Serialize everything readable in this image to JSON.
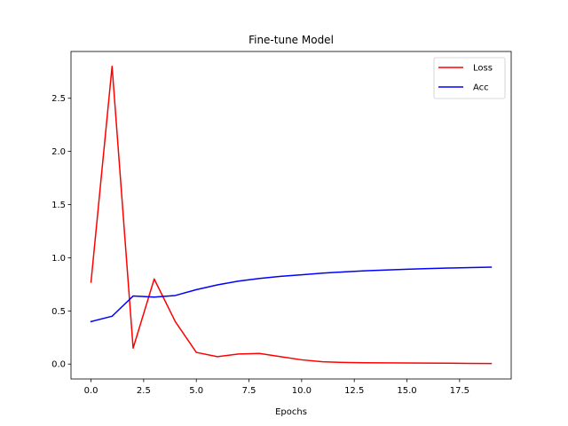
{
  "chart_data": {
    "type": "line",
    "title": "Fine-tune Model",
    "xlabel": "Epochs",
    "ylabel": "",
    "x": [
      0,
      1,
      2,
      3,
      4,
      5,
      6,
      7,
      8,
      9,
      10,
      11,
      12,
      13,
      14,
      15,
      16,
      17,
      18,
      19
    ],
    "series": [
      {
        "name": "Loss",
        "color": "#ff0000",
        "values": [
          0.77,
          2.8,
          0.15,
          0.8,
          0.4,
          0.11,
          0.07,
          0.095,
          0.1,
          0.07,
          0.04,
          0.022,
          0.015,
          0.012,
          0.011,
          0.01,
          0.009,
          0.008,
          0.006,
          0.005
        ]
      },
      {
        "name": "Acc",
        "color": "#0000ff",
        "values": [
          0.4,
          0.45,
          0.64,
          0.63,
          0.645,
          0.7,
          0.745,
          0.78,
          0.805,
          0.825,
          0.84,
          0.855,
          0.867,
          0.877,
          0.885,
          0.892,
          0.898,
          0.903,
          0.908,
          0.912
        ]
      }
    ],
    "xlim": [
      -0.95,
      19.95
    ],
    "ylim": [
      -0.14,
      2.94
    ],
    "xticks": [
      0.0,
      2.5,
      5.0,
      7.5,
      10.0,
      12.5,
      15.0,
      17.5
    ],
    "xtick_labels": [
      "0.0",
      "2.5",
      "5.0",
      "7.5",
      "10.0",
      "12.5",
      "15.0",
      "17.5"
    ],
    "yticks": [
      0.0,
      0.5,
      1.0,
      1.5,
      2.0,
      2.5
    ],
    "ytick_labels": [
      "0.0",
      "0.5",
      "1.0",
      "1.5",
      "2.0",
      "2.5"
    ],
    "grid": false,
    "legend": "upper right"
  }
}
